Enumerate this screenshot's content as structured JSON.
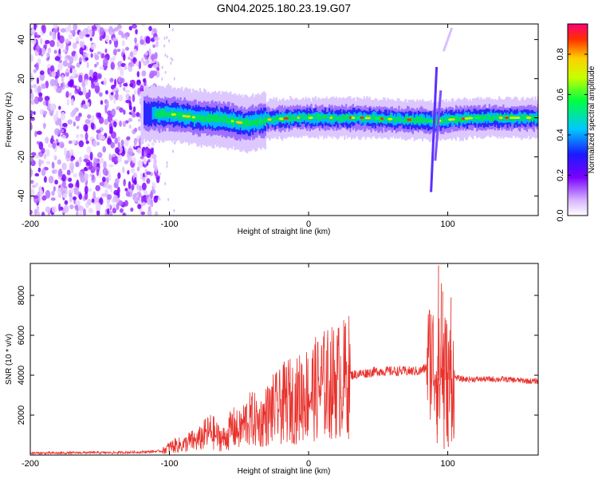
{
  "chart_data": [
    {
      "type": "heatmap",
      "title": "GN04.2025.180.23.19.G07",
      "xlabel": "Height of straight line (km)",
      "ylabel": "Frequency (Hz)",
      "xlim": [
        -200,
        165
      ],
      "ylim": [
        -50,
        48
      ],
      "xticks": [
        "-200",
        "-100",
        "0",
        "100"
      ],
      "yticks": [
        "40",
        "20",
        "0",
        "-20",
        "-40"
      ],
      "colorbar": {
        "label": "Normalized spectral amplitude",
        "range": [
          0,
          0.95
        ],
        "ticks": [
          "0.0",
          "0.2",
          "0.4",
          "0.6",
          "0.8"
        ]
      },
      "ridge": [
        {
          "x": -118,
          "y": 2
        },
        {
          "x": -100,
          "y": 2
        },
        {
          "x": -80,
          "y": 0
        },
        {
          "x": -60,
          "y": -1
        },
        {
          "x": -45,
          "y": -3
        },
        {
          "x": -30,
          "y": -1
        },
        {
          "x": -10,
          "y": 0
        },
        {
          "x": 10,
          "y": 0
        },
        {
          "x": 40,
          "y": 0
        },
        {
          "x": 70,
          "y": -1
        },
        {
          "x": 82,
          "y": -1
        },
        {
          "x": 90,
          "y": -2
        },
        {
          "x": 100,
          "y": -1
        },
        {
          "x": 120,
          "y": 0
        },
        {
          "x": 165,
          "y": 0
        }
      ],
      "grid": false
    },
    {
      "type": "line",
      "xlabel": "Height of straight line (km)",
      "ylabel": "SNR (10 * v/v)",
      "xlim": [
        -200,
        165
      ],
      "ylim": [
        0,
        9600
      ],
      "xticks": [
        "-200",
        "-100",
        "0",
        "100"
      ],
      "yticks": [
        "8000",
        "6000",
        "4000",
        "2000"
      ],
      "color": "#e8322d",
      "series": [
        {
          "x": [
            -200,
            -180,
            -160,
            -140,
            -120,
            -105,
            -100,
            -95,
            -90,
            -85,
            -80,
            -75,
            -70,
            -65,
            -60,
            -55,
            -50,
            -45,
            -40,
            -35,
            -30,
            -25,
            -20,
            -15,
            -10,
            -5,
            0,
            5,
            10,
            15,
            20,
            25,
            30,
            40,
            50,
            60,
            70,
            80,
            85,
            88,
            90,
            92,
            94,
            96,
            98,
            100,
            105,
            110,
            120,
            130,
            140,
            150,
            160,
            165
          ],
          "values": [
            100,
            100,
            120,
            120,
            150,
            200,
            400,
            500,
            500,
            700,
            700,
            1000,
            1200,
            900,
            800,
            1400,
            1200,
            1700,
            1800,
            1600,
            2000,
            2300,
            2400,
            2800,
            2600,
            3000,
            3100,
            3300,
            3500,
            3600,
            3700,
            3800,
            4000,
            4100,
            4200,
            4200,
            4200,
            4200,
            4400,
            5000,
            4600,
            4200,
            3800,
            4400,
            4200,
            3700,
            3900,
            3800,
            3800,
            3800,
            3800,
            3750,
            3700,
            3700
          ]
        }
      ],
      "peaks": [
        {
          "x": 93,
          "y": 9500
        },
        {
          "x": 95,
          "y": 8600
        },
        {
          "x": 96,
          "y": 8200
        },
        {
          "x": 102,
          "y": 7900
        },
        {
          "x": 92,
          "y": 600
        },
        {
          "x": 97,
          "y": 300
        },
        {
          "x": 100,
          "y": 400
        }
      ],
      "grid": false
    }
  ]
}
